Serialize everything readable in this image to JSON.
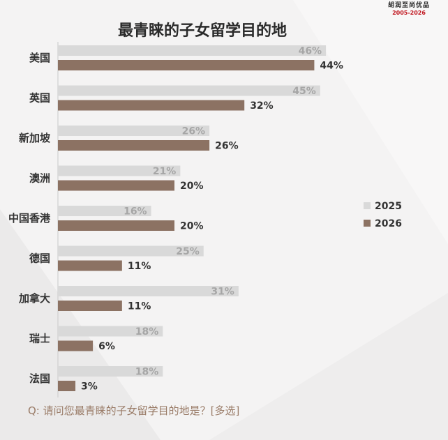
{
  "header": {
    "logo_brand": "胡润至尚优品",
    "logo_years": "2005-2026",
    "title": "最青睐的子女留学目的地"
  },
  "footer": {
    "question": "Q: 请问您最青睐的子女留学目的地是？[多选]"
  },
  "colors": {
    "series_2025": "#d9d9d9",
    "series_2026": "#8c7263",
    "label_2025": "#a6a6a6",
    "label_2026": "#333333"
  },
  "chart_data": {
    "type": "bar",
    "orientation": "horizontal",
    "title": "最青睐的子女留学目的地",
    "categories": [
      "美国",
      "英国",
      "新加坡",
      "澳洲",
      "中国香港",
      "德国",
      "加拿大",
      "瑞士",
      "法国"
    ],
    "series": [
      {
        "name": "2025",
        "values": [
          46,
          45,
          26,
          21,
          16,
          25,
          31,
          18,
          18
        ]
      },
      {
        "name": "2026",
        "values": [
          44,
          32,
          26,
          20,
          20,
          11,
          11,
          6,
          3
        ]
      }
    ],
    "value_suffix": "%",
    "legend_position": "right",
    "grid": false
  }
}
